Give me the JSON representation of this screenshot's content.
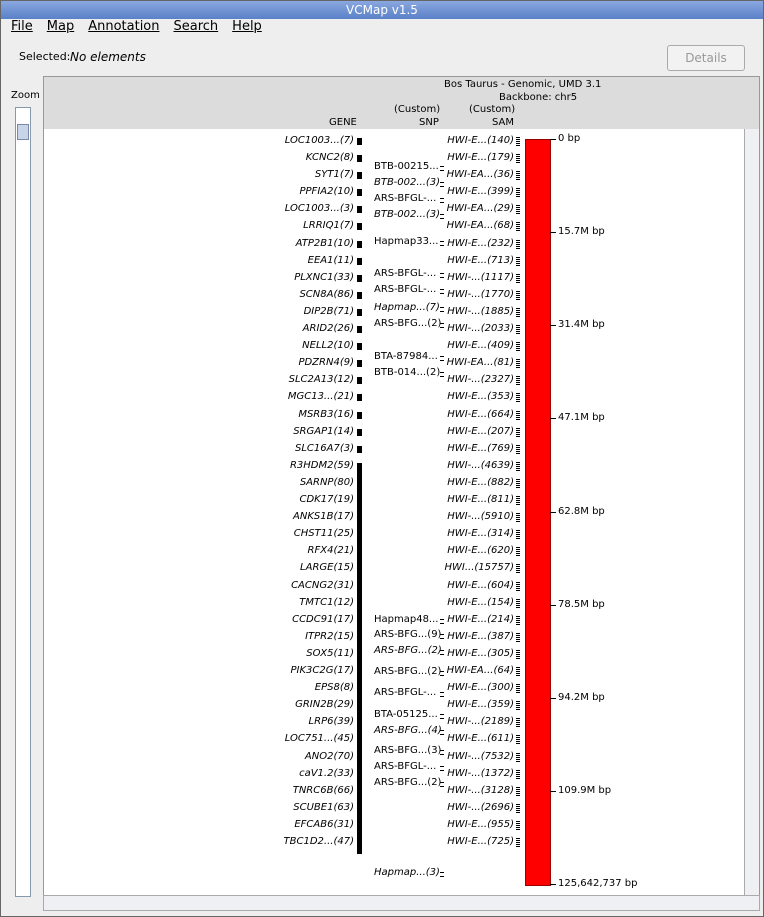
{
  "window": {
    "title": "VCMap v1.5"
  },
  "menu": [
    "File",
    "Map",
    "Annotation",
    "Search",
    "Help"
  ],
  "toolbar": {
    "selected_label": "Selected:",
    "selected_value": "No elements",
    "details_button": "Details"
  },
  "zoom": {
    "label": "Zoom"
  },
  "header": {
    "species": "Bos Taurus - Genomic, UMD 3.1",
    "backbone": "Backbone: chr5",
    "snp_custom": "(Custom)",
    "snp": "SNP",
    "sam_custom": "(Custom)",
    "sam": "SAM",
    "gene": "GENE"
  },
  "genes": [
    "LOC1003...(7)",
    "KCNC2(8)",
    "SYT1(7)",
    "PPFIA2(10)",
    "LOC1003...(3)",
    "LRRIQ1(7)",
    "ATP2B1(10)",
    "EEA1(11)",
    "PLXNC1(33)",
    "SCN8A(86)",
    "DIP2B(71)",
    "ARID2(26)",
    "NELL2(10)",
    "PDZRN4(9)",
    "SLC2A13(12)",
    "MGC13...(21)",
    "MSRB3(16)",
    "SRGAP1(14)",
    "SLC16A7(3)",
    "R3HDM2(59)",
    "SARNP(80)",
    "CDK17(19)",
    "ANKS1B(17)",
    "CHST11(25)",
    "RFX4(21)",
    "LARGE(15)",
    "CACNG2(31)",
    "TMTC1(12)",
    "CCDC91(17)",
    "ITPR2(15)",
    "SOX5(11)",
    "PIK3C2G(17)",
    "EPS8(8)",
    "GRIN2B(29)",
    "LRP6(39)",
    "LOC751...(45)",
    "ANO2(70)",
    "caV1.2(33)",
    "TNRC6B(66)",
    "SCUBE1(63)",
    "EFCAB6(31)",
    "TBC1D2...(47)"
  ],
  "snps": [
    "BTB-00215...",
    "BTB-002...(3)",
    "ARS-BFGL-...",
    "BTB-002...(3)",
    "Hapmap33...",
    "ARS-BFGL-...",
    "ARS-BFGL-...",
    "Hapmap...(7)",
    "ARS-BFG...(2)",
    "BTA-87984...",
    "BTB-014...(2)",
    "Hapmap48...",
    "ARS-BFG...(9)",
    "ARS-BFG...(2)",
    "ARS-BFG...(2)",
    "ARS-BFGL-...",
    "BTA-05125...",
    "ARS-BFG...(4)",
    "ARS-BFG...(3)",
    "ARS-BFGL-...",
    "ARS-BFG...(2)",
    "Hapmap...(3)"
  ],
  "sams": [
    "HWI-E...(140)",
    "HWI-E...(179)",
    "HWI-EA...(36)",
    "HWI-E...(399)",
    "HWI-EA...(29)",
    "HWI-EA...(68)",
    "HWI-E...(232)",
    "HWI-E...(713)",
    "HWI-...(1117)",
    "HWI-...(1770)",
    "HWI-...(1885)",
    "HWI-...(2033)",
    "HWI-E...(409)",
    "HWI-EA...(81)",
    "HWI-...(2327)",
    "HWI-E...(353)",
    "HWI-E...(664)",
    "HWI-E...(207)",
    "HWI-E...(769)",
    "HWI-...(4639)",
    "HWI-E...(882)",
    "HWI-E...(811)",
    "HWI-...(5910)",
    "HWI-E...(314)",
    "HWI-E...(620)",
    "HWI...(15757)",
    "HWI-E...(604)",
    "HWI-E...(154)",
    "HWI-E...(214)",
    "HWI-E...(387)",
    "HWI-E...(305)",
    "HWI-EA...(64)",
    "HWI-E...(300)",
    "HWI-E...(359)",
    "HWI-...(2189)",
    "HWI-E...(611)",
    "HWI-...(7532)",
    "HWI-...(1372)",
    "HWI-...(3128)",
    "HWI-...(2696)",
    "HWI-E...(955)",
    "HWI-E...(725)"
  ],
  "ruler": [
    "0 bp",
    "15.7M bp",
    "31.4M bp",
    "47.1M bp",
    "62.8M bp",
    "78.5M bp",
    "94.2M bp",
    "109.9M bp",
    "125,642,737 bp"
  ]
}
